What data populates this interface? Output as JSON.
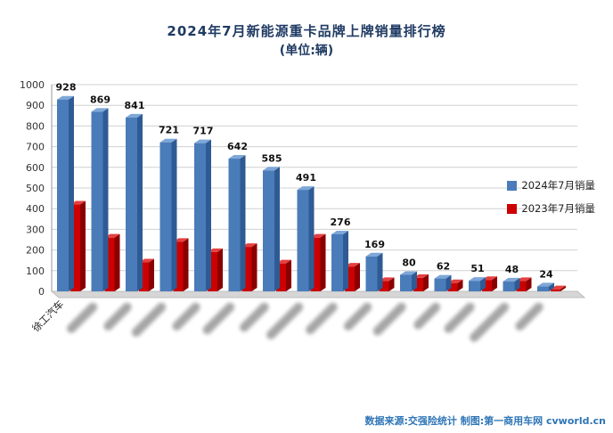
{
  "title": "2024年7月新能源重卡品牌上牌销量排行榜",
  "subtitle": "(单位:辆)",
  "footer": "数据来源:交强险统计 制图:第一商用车网 cvworld.cn",
  "legend": {
    "s2024": "2024年7月销量",
    "s2023": "2023年7月销量"
  },
  "colors": {
    "title": "#1f3a63",
    "footer": "#2e75b6",
    "blue_front": "#4a7cba",
    "blue_top": "#7da7d8",
    "blue_side": "#2f5b94",
    "red_front": "#cc0000",
    "red_top": "#e54040",
    "red_side": "#8a0000",
    "grid": "#d0d0d0",
    "axis": "#999999",
    "floor": "#d6d6d6",
    "value_label": "#111111",
    "tick_label": "#333333"
  },
  "chart_data": {
    "type": "bar",
    "title": "2024年7月新能源重卡品牌上牌销量排行榜",
    "subtitle": "(单位:辆)",
    "ylim": [
      0,
      1000
    ],
    "ytick_step": 100,
    "grid": true,
    "legend_position": "right",
    "categories": [
      {
        "label": "徐工汽车",
        "blurred": false
      },
      {
        "label": "",
        "blurred": true
      },
      {
        "label": "",
        "blurred": true
      },
      {
        "label": "",
        "blurred": true
      },
      {
        "label": "",
        "blurred": true
      },
      {
        "label": "",
        "blurred": true
      },
      {
        "label": "",
        "blurred": true
      },
      {
        "label": "",
        "blurred": true
      },
      {
        "label": "",
        "blurred": true
      },
      {
        "label": "",
        "blurred": true
      },
      {
        "label": "",
        "blurred": true
      },
      {
        "label": "",
        "blurred": true
      },
      {
        "label": "",
        "blurred": true
      },
      {
        "label": "",
        "blurred": true
      },
      {
        "label": "",
        "blurred": true
      }
    ],
    "series": [
      {
        "name": "2024年7月销量",
        "color": "#4a7cba",
        "values": [
          928,
          869,
          841,
          721,
          717,
          642,
          585,
          491,
          276,
          169,
          80,
          62,
          51,
          48,
          24
        ],
        "labels_shown": true
      },
      {
        "name": "2023年7月销量",
        "color": "#cc0000",
        "values": [
          420,
          260,
          140,
          240,
          190,
          215,
          135,
          260,
          120,
          50,
          65,
          40,
          55,
          50,
          10
        ],
        "labels_shown": false,
        "values_estimated": true
      }
    ]
  }
}
